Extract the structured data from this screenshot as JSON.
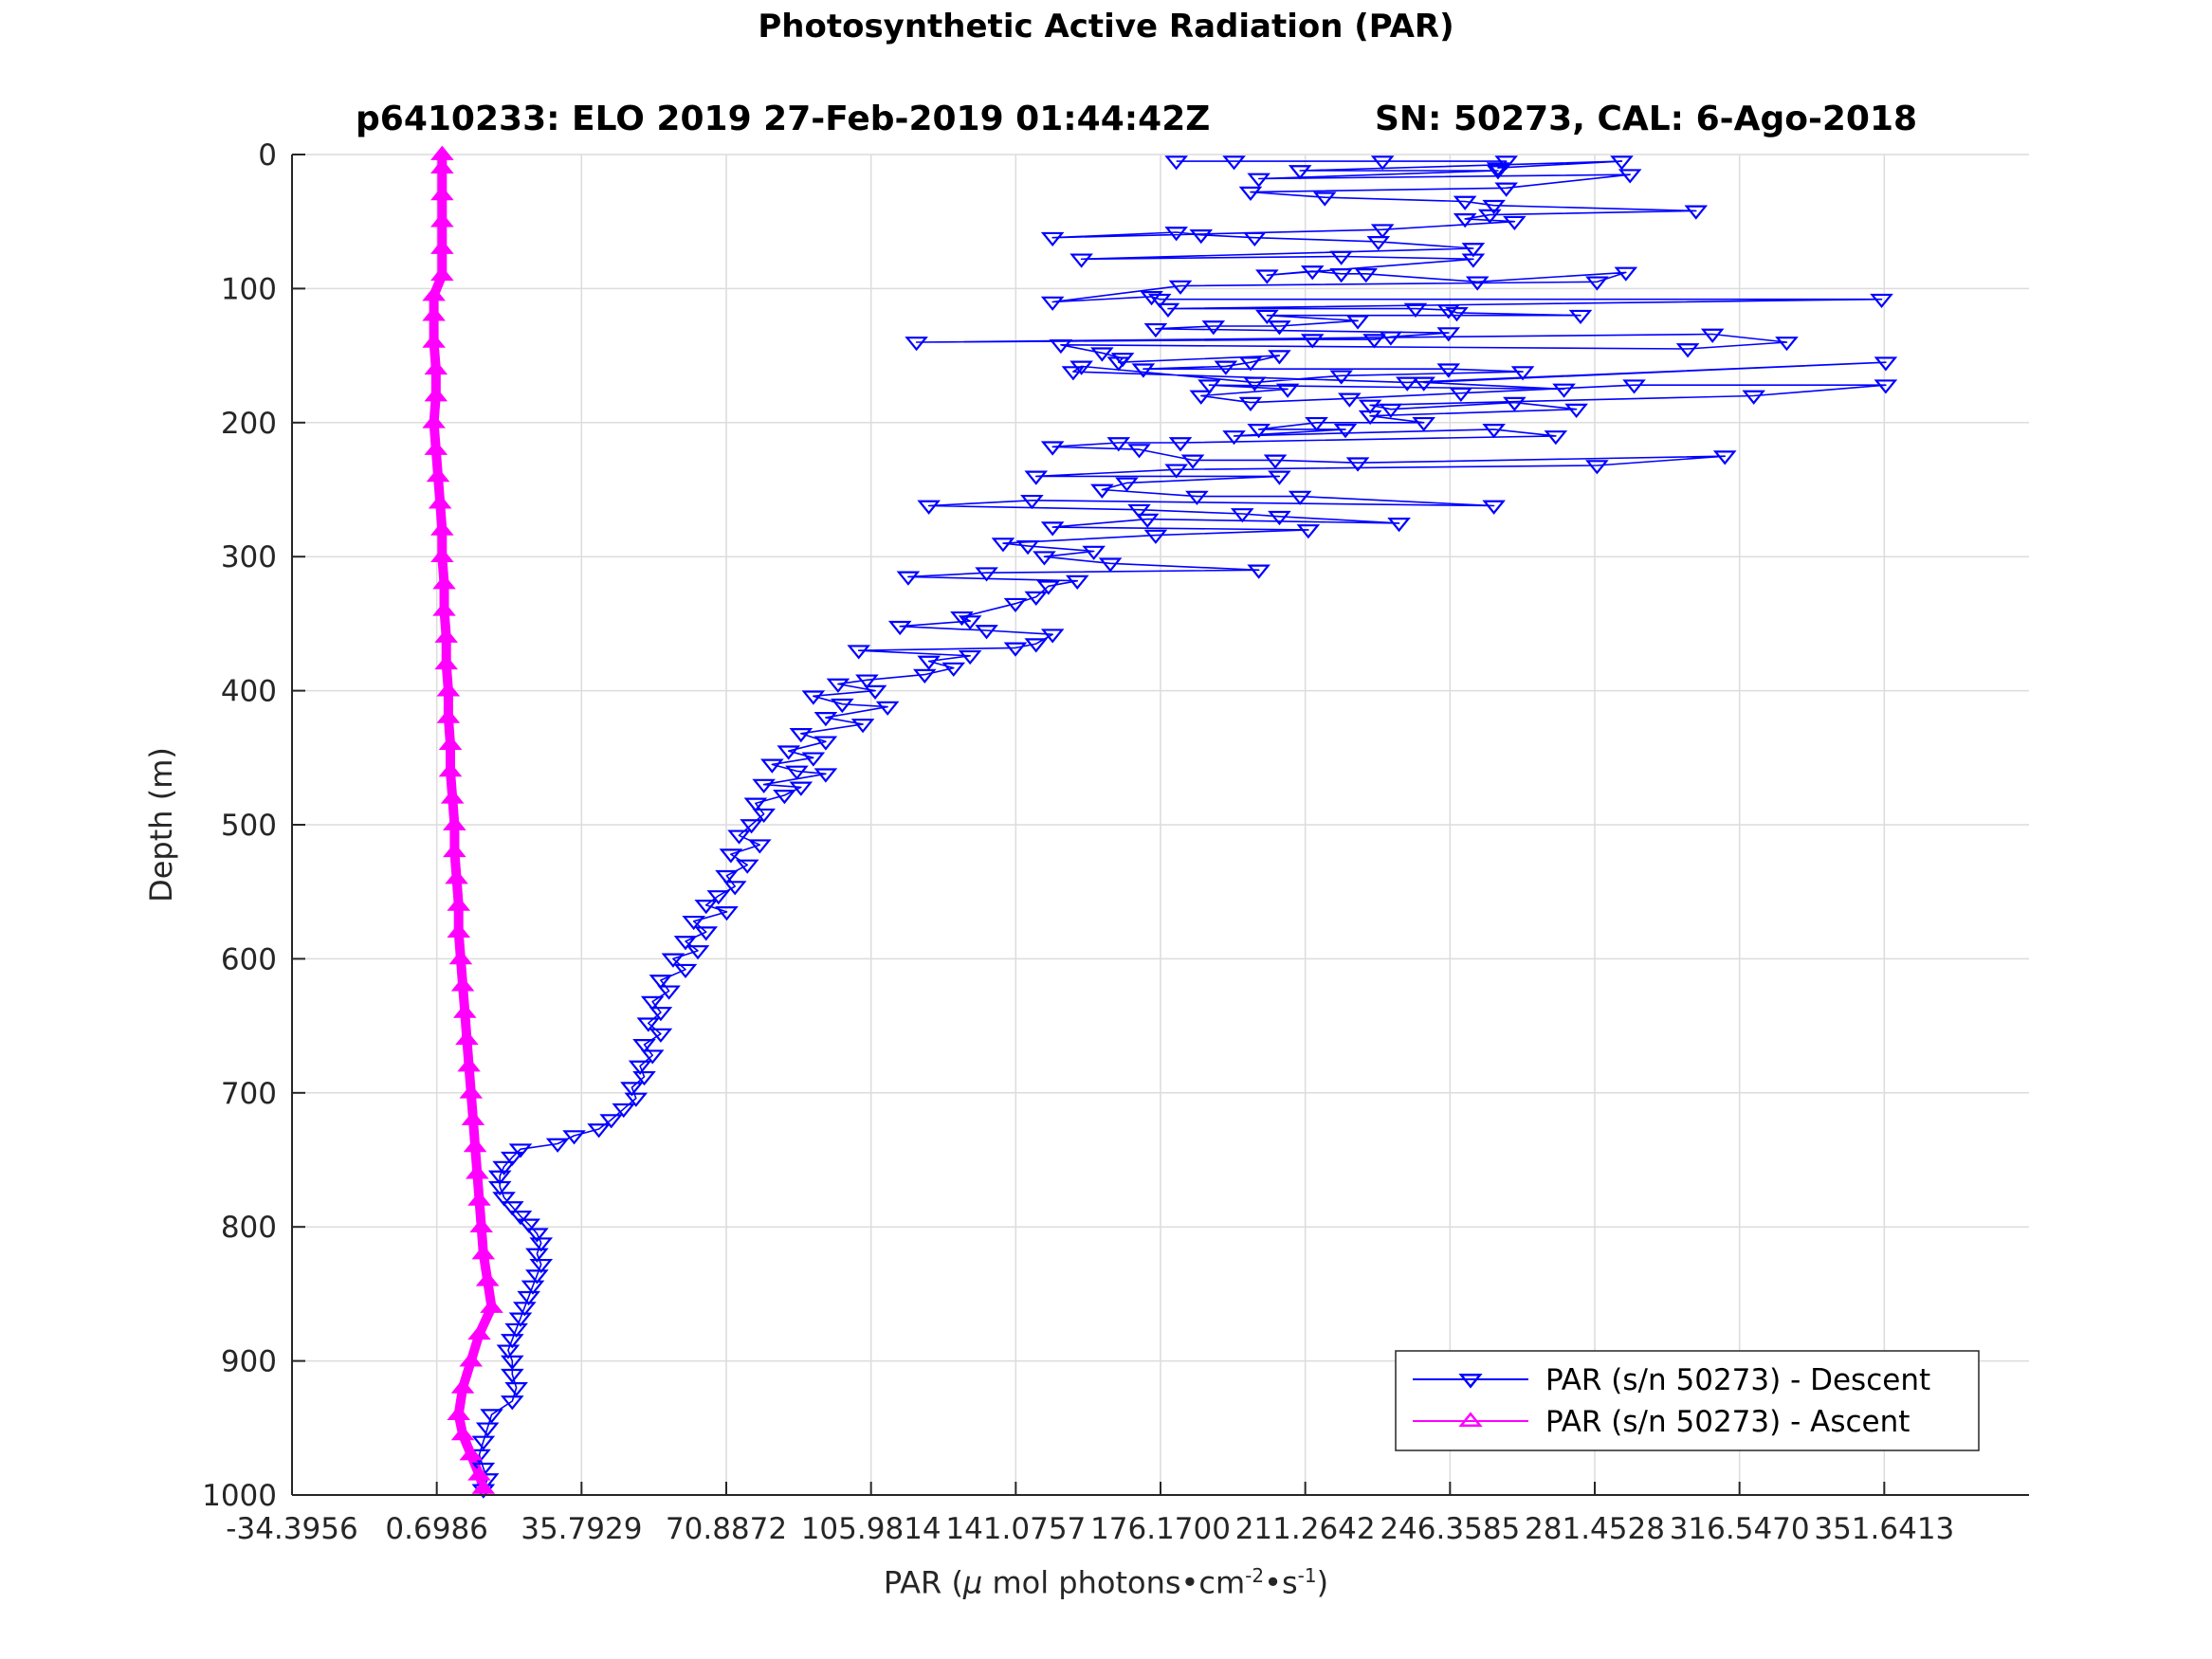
{
  "figure": {
    "title": "Photosynthetic Active Radiation (PAR)",
    "subtitle_left": "p6410233: ELO 2019 27-Feb-2019 01:44:42Z",
    "subtitle_right": "SN: 50273, CAL: 6-Ago-2018",
    "xlabel_prefix": "PAR (",
    "xlabel_mu": "μ",
    "xlabel_mid": " mol photons•cm",
    "xlabel_exp1": "-2",
    "xlabel_mid2": "•s",
    "xlabel_exp2": "-1",
    "xlabel_suffix": ")",
    "ylabel": "Depth (m)"
  },
  "chart_data": {
    "type": "scatter",
    "title": "Photosynthetic Active Radiation (PAR)",
    "subtitle": "p6410233: ELO 2019 27-Feb-2019 01:44:42Z        SN: 50273, CAL: 6-Ago-2018",
    "xlabel": "PAR (μ mol photons•cm^-2•s^-1)",
    "ylabel": "Depth (m)",
    "xlim": [
      -34.3956,
      386.7356
    ],
    "ylim": [
      0,
      1000
    ],
    "y_reversed": true,
    "grid": true,
    "legend_position": "bottom-right",
    "x_ticks": [
      -34.3956,
      0.6986,
      35.7929,
      70.8872,
      105.9814,
      141.0757,
      176.17,
      211.2642,
      246.3585,
      281.4528,
      316.547,
      351.6413
    ],
    "x_tick_labels": [
      "-34.3956",
      "0.6986",
      "35.7929",
      "70.8872",
      "105.9814",
      "141.0757",
      "176.1700",
      "211.2642",
      "246.3585",
      "281.4528",
      "316.5470",
      "351.6413"
    ],
    "y_ticks": [
      0,
      100,
      200,
      300,
      400,
      500,
      600,
      700,
      800,
      900,
      1000
    ],
    "y_tick_labels": [
      "0",
      "100",
      "200",
      "300",
      "400",
      "500",
      "600",
      "700",
      "800",
      "900",
      "1000"
    ],
    "series": [
      {
        "name": "PAR (s/n 50273) - Descent",
        "color": "#0000ff",
        "marker": "triangle-down",
        "points": [
          [
            180,
            5
          ],
          [
            194,
            5
          ],
          [
            230,
            5
          ],
          [
            260,
            5
          ],
          [
            258,
            10
          ],
          [
            288,
            5
          ],
          [
            210,
            12
          ],
          [
            258,
            12
          ],
          [
            200,
            18
          ],
          [
            290,
            15
          ],
          [
            260,
            25
          ],
          [
            198,
            28
          ],
          [
            216,
            32
          ],
          [
            250,
            35
          ],
          [
            257,
            38
          ],
          [
            306,
            42
          ],
          [
            256,
            45
          ],
          [
            250,
            48
          ],
          [
            262,
            50
          ],
          [
            230,
            56
          ],
          [
            150,
            62
          ],
          [
            180,
            58
          ],
          [
            186,
            60
          ],
          [
            199,
            62
          ],
          [
            229,
            65
          ],
          [
            252,
            70
          ],
          [
            157,
            78
          ],
          [
            220,
            76
          ],
          [
            252,
            78
          ],
          [
            202,
            90
          ],
          [
            213,
            87
          ],
          [
            220,
            89
          ],
          [
            226,
            89
          ],
          [
            253,
            95
          ],
          [
            289,
            88
          ],
          [
            282,
            95
          ],
          [
            181,
            98
          ],
          [
            150,
            110
          ],
          [
            174,
            106
          ],
          [
            176,
            108
          ],
          [
            351,
            108
          ],
          [
            178,
            115
          ],
          [
            238,
            115
          ],
          [
            246,
            116
          ],
          [
            248,
            118
          ],
          [
            278,
            120
          ],
          [
            202,
            120
          ],
          [
            224,
            124
          ],
          [
            205,
            128
          ],
          [
            189,
            128
          ],
          [
            175,
            130
          ],
          [
            246,
            133
          ],
          [
            232,
            136
          ],
          [
            228,
            138
          ],
          [
            213,
            138
          ],
          [
            117,
            140
          ],
          [
            310,
            134
          ],
          [
            328,
            140
          ],
          [
            304,
            145
          ],
          [
            152,
            142
          ],
          [
            162,
            148
          ],
          [
            167,
            152
          ],
          [
            166,
            155
          ],
          [
            205,
            150
          ],
          [
            198,
            155
          ],
          [
            192,
            158
          ],
          [
            172,
            160
          ],
          [
            246,
            160
          ],
          [
            264,
            162
          ],
          [
            220,
            165
          ],
          [
            199,
            170
          ],
          [
            157,
            158
          ],
          [
            155,
            162
          ],
          [
            236,
            170
          ],
          [
            352,
            155
          ],
          [
            240,
            170
          ],
          [
            274,
            175
          ],
          [
            188,
            172
          ],
          [
            207,
            175
          ],
          [
            186,
            180
          ],
          [
            198,
            185
          ],
          [
            222,
            182
          ],
          [
            249,
            178
          ],
          [
            291,
            172
          ],
          [
            352,
            172
          ],
          [
            320,
            180
          ],
          [
            227,
            187
          ],
          [
            232,
            190
          ],
          [
            262,
            185
          ],
          [
            277,
            190
          ],
          [
            227,
            195
          ],
          [
            240,
            200
          ],
          [
            214,
            200
          ],
          [
            200,
            205
          ],
          [
            221,
            205
          ],
          [
            194,
            210
          ],
          [
            257,
            205
          ],
          [
            272,
            210
          ],
          [
            181,
            215
          ],
          [
            166,
            215
          ],
          [
            150,
            218
          ],
          [
            171,
            220
          ],
          [
            184,
            228
          ],
          [
            204,
            228
          ],
          [
            224,
            230
          ],
          [
            313,
            225
          ],
          [
            282,
            232
          ],
          [
            180,
            235
          ],
          [
            146,
            240
          ],
          [
            205,
            240
          ],
          [
            168,
            245
          ],
          [
            162,
            250
          ],
          [
            185,
            255
          ],
          [
            210,
            255
          ],
          [
            257,
            262
          ],
          [
            145,
            258
          ],
          [
            120,
            262
          ],
          [
            171,
            265
          ],
          [
            196,
            268
          ],
          [
            205,
            270
          ],
          [
            234,
            275
          ],
          [
            173,
            272
          ],
          [
            150,
            278
          ],
          [
            212,
            280
          ],
          [
            175,
            284
          ],
          [
            138,
            290
          ],
          [
            144,
            292
          ],
          [
            160,
            296
          ],
          [
            148,
            300
          ],
          [
            164,
            305
          ],
          [
            200,
            310
          ],
          [
            134,
            312
          ],
          [
            115,
            315
          ],
          [
            156,
            318
          ],
          [
            149,
            322
          ],
          [
            146,
            330
          ],
          [
            141,
            335
          ],
          [
            128,
            345
          ],
          [
            130,
            348
          ],
          [
            113,
            352
          ],
          [
            134,
            355
          ],
          [
            150,
            358
          ],
          [
            146,
            365
          ],
          [
            141,
            368
          ],
          [
            103,
            370
          ],
          [
            130,
            374
          ],
          [
            120,
            378
          ],
          [
            126,
            383
          ],
          [
            119,
            388
          ],
          [
            105,
            392
          ],
          [
            98,
            395
          ],
          [
            107,
            400
          ],
          [
            92,
            404
          ],
          [
            99,
            410
          ],
          [
            110,
            412
          ],
          [
            95,
            420
          ],
          [
            104,
            425
          ],
          [
            89,
            432
          ],
          [
            95,
            438
          ],
          [
            86,
            445
          ],
          [
            92,
            450
          ],
          [
            82,
            455
          ],
          [
            88,
            460
          ],
          [
            95,
            462
          ],
          [
            80,
            470
          ],
          [
            89,
            472
          ],
          [
            85,
            478
          ],
          [
            78,
            484
          ],
          [
            80,
            492
          ],
          [
            77,
            500
          ],
          [
            74,
            508
          ],
          [
            79,
            515
          ],
          [
            72,
            522
          ],
          [
            76,
            530
          ],
          [
            71,
            538
          ],
          [
            73,
            546
          ],
          [
            69,
            553
          ],
          [
            66,
            560
          ],
          [
            71,
            565
          ],
          [
            63,
            572
          ],
          [
            66,
            580
          ],
          [
            61,
            587
          ],
          [
            64,
            594
          ],
          [
            58,
            600
          ],
          [
            61,
            608
          ],
          [
            55,
            616
          ],
          [
            57,
            624
          ],
          [
            53,
            632
          ],
          [
            55,
            640
          ],
          [
            52,
            648
          ],
          [
            55,
            656
          ],
          [
            51,
            664
          ],
          [
            53,
            672
          ],
          [
            50,
            680
          ],
          [
            51,
            688
          ],
          [
            48,
            696
          ],
          [
            49,
            704
          ],
          [
            46,
            712
          ],
          [
            43,
            720
          ],
          [
            40,
            727
          ],
          [
            34,
            732
          ],
          [
            30,
            738
          ],
          [
            21,
            742
          ],
          [
            19,
            748
          ],
          [
            17,
            755
          ],
          [
            16,
            762
          ],
          [
            16,
            770
          ],
          [
            17,
            778
          ],
          [
            19,
            785
          ],
          [
            21,
            792
          ],
          [
            23,
            798
          ],
          [
            25,
            805
          ],
          [
            26,
            812
          ],
          [
            25,
            820
          ],
          [
            26,
            828
          ],
          [
            25,
            836
          ],
          [
            24,
            844
          ],
          [
            23,
            852
          ],
          [
            22,
            860
          ],
          [
            21,
            868
          ],
          [
            20,
            876
          ],
          [
            19,
            884
          ],
          [
            18,
            892
          ],
          [
            19,
            900
          ],
          [
            19,
            910
          ],
          [
            20,
            920
          ],
          [
            19,
            930
          ],
          [
            14,
            940
          ],
          [
            13,
            950
          ],
          [
            12,
            960
          ],
          [
            11,
            970
          ],
          [
            12,
            980
          ],
          [
            13,
            988
          ],
          [
            12,
            996
          ]
        ]
      },
      {
        "name": "PAR (s/n 50273) - Ascent",
        "color": "#ff00ff",
        "marker": "triangle-up",
        "points": [
          [
            2,
            0
          ],
          [
            2,
            10
          ],
          [
            2,
            30
          ],
          [
            2,
            50
          ],
          [
            2,
            70
          ],
          [
            2,
            90
          ],
          [
            0,
            105
          ],
          [
            0,
            120
          ],
          [
            0,
            140
          ],
          [
            0.5,
            160
          ],
          [
            0.5,
            180
          ],
          [
            0,
            200
          ],
          [
            0.5,
            220
          ],
          [
            1,
            240
          ],
          [
            1.5,
            260
          ],
          [
            2,
            280
          ],
          [
            2,
            300
          ],
          [
            2.5,
            320
          ],
          [
            2.5,
            340
          ],
          [
            3,
            360
          ],
          [
            3,
            380
          ],
          [
            3.5,
            400
          ],
          [
            3.5,
            420
          ],
          [
            4,
            440
          ],
          [
            4,
            460
          ],
          [
            4.5,
            480
          ],
          [
            5,
            500
          ],
          [
            5,
            520
          ],
          [
            5.5,
            540
          ],
          [
            6,
            560
          ],
          [
            6,
            580
          ],
          [
            6.5,
            600
          ],
          [
            7,
            620
          ],
          [
            7.5,
            640
          ],
          [
            8,
            660
          ],
          [
            8.5,
            680
          ],
          [
            9,
            700
          ],
          [
            9.5,
            720
          ],
          [
            10,
            740
          ],
          [
            10.5,
            760
          ],
          [
            11,
            780
          ],
          [
            11.5,
            800
          ],
          [
            12,
            820
          ],
          [
            13,
            840
          ],
          [
            14,
            860
          ],
          [
            11,
            880
          ],
          [
            9,
            900
          ],
          [
            7,
            920
          ],
          [
            6,
            940
          ],
          [
            7,
            955
          ],
          [
            9,
            970
          ],
          [
            11,
            985
          ],
          [
            12,
            995
          ]
        ]
      }
    ]
  }
}
